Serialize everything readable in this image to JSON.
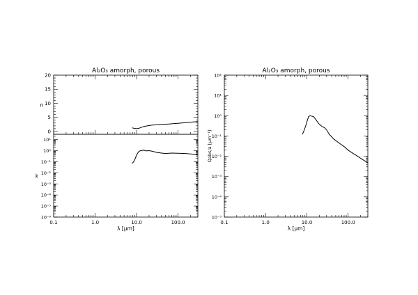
{
  "chart_data": [
    {
      "type": "line",
      "title": "Al₂O₃ amorph, porous",
      "panels": [
        {
          "ylabel": "n",
          "yscale": "linear",
          "ylim": [
            -1,
            20
          ],
          "yticks": [
            0,
            5,
            10,
            15,
            20
          ],
          "ytick_labels": [
            "0",
            "5",
            "10",
            "15",
            "20"
          ],
          "series": [
            {
              "x": [
                7.8,
                8.8,
                10.2,
                11.5,
                13,
                15,
                18,
                22,
                28,
                35,
                45,
                60,
                80,
                100,
                130,
                170,
                220,
                300
              ],
              "y": [
                1.3,
                1.1,
                1.0,
                1.15,
                1.45,
                1.75,
                2.0,
                2.2,
                2.35,
                2.45,
                2.55,
                2.65,
                2.8,
                2.9,
                3.05,
                3.2,
                3.35,
                3.5
              ]
            }
          ]
        },
        {
          "ylabel": "k",
          "yscale": "log",
          "ylim": [
            1e-06,
            30
          ],
          "yticks": [
            1e-06,
            1e-05,
            0.0001,
            0.001,
            0.01,
            0.1,
            1,
            10
          ],
          "ytick_labels": [
            "10⁻⁶",
            "10⁻⁵",
            "10⁻⁴",
            "10⁻³",
            "10⁻²",
            "10⁻¹",
            "10⁰",
            "10¹"
          ],
          "series": [
            {
              "x": [
                7.8,
                8.5,
                9.2,
                10.0,
                11.0,
                12.0,
                13.5,
                15.0,
                17.0,
                20.0,
                25.0,
                30.0,
                40.0,
                50.0,
                70.0,
                100.0,
                150.0,
                200.0,
                300.0
              ],
              "y": [
                0.07,
                0.1,
                0.18,
                0.4,
                0.75,
                0.95,
                1.05,
                1.1,
                0.95,
                1.0,
                0.85,
                0.7,
                0.6,
                0.55,
                0.6,
                0.58,
                0.55,
                0.5,
                0.42
              ]
            }
          ]
        }
      ],
      "xlabel": "λ [μm]",
      "xscale": "log",
      "xlim": [
        0.1,
        300
      ],
      "xticks": [
        0.1,
        1.0,
        10.0,
        100.0
      ],
      "xtick_labels": [
        "0.1",
        "1.0",
        "10.0",
        "100.0"
      ]
    },
    {
      "type": "line",
      "title": "Al₂O₃ amorph, porous",
      "ylabel": "Qₐₐₐ/a [μm⁻¹]",
      "ylabel_text": "Qabs/a [μm⁻¹]",
      "yscale": "log",
      "ylim": [
        1e-05,
        100
      ],
      "yticks": [
        1e-05,
        0.0001,
        0.001,
        0.01,
        0.1,
        1,
        10,
        100
      ],
      "ytick_labels": [
        "10⁻⁵",
        "10⁻⁴",
        "10⁻³",
        "10⁻²",
        "10⁻¹",
        "10⁰",
        "10¹",
        "10²"
      ],
      "xlabel": "λ [μm]",
      "xscale": "log",
      "xlim": [
        0.1,
        300
      ],
      "xticks": [
        0.1,
        1.0,
        10.0,
        100.0
      ],
      "xtick_labels": [
        "0.1",
        "1.0",
        "10.0",
        "100.0"
      ],
      "series": [
        {
          "x": [
            7.8,
            8.5,
            9.3,
            10.0,
            11.0,
            12.0,
            13.0,
            14.5,
            16.0,
            18.0,
            20.0,
            23.0,
            27.0,
            30.0,
            35.0,
            45.0,
            60.0,
            80.0,
            100.0,
            130.0,
            170.0,
            220.0,
            300.0
          ],
          "y": [
            0.12,
            0.18,
            0.3,
            0.5,
            0.9,
            1.0,
            0.95,
            0.9,
            0.7,
            0.5,
            0.38,
            0.3,
            0.25,
            0.2,
            0.12,
            0.07,
            0.045,
            0.03,
            0.02,
            0.014,
            0.01,
            0.007,
            0.0048
          ]
        }
      ]
    }
  ]
}
